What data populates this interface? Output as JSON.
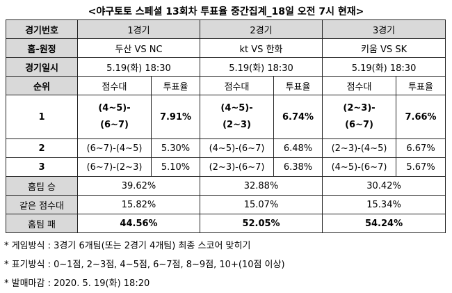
{
  "title": "<야구토토 스페셜 13회차 투표율 중간집계_18일 오전 7시 현재>",
  "header": {
    "game_no_label": "경기번호",
    "games": [
      "1경기",
      "2경기",
      "3경기"
    ]
  },
  "matchup": {
    "label": "홈-원정",
    "values": [
      "두산 VS NC",
      "kt VS 한화",
      "키움 VS SK"
    ]
  },
  "schedule": {
    "label": "경기일시",
    "values": [
      "5.19(화) 18:30",
      "5.19(화) 18:30",
      "5.19(화) 18:30"
    ]
  },
  "rank_header": {
    "label": "순위",
    "score_label": "점수대",
    "rate_label": "투표율"
  },
  "ranks": [
    {
      "rank": "1",
      "cells": [
        {
          "score_line1": "(4~5)-",
          "score_line2": "(6~7)",
          "rate": "7.91%"
        },
        {
          "score_line1": "(4~5)-",
          "score_line2": "(2~3)",
          "rate": "6.74%"
        },
        {
          "score_line1": "(2~3)-",
          "score_line2": "(6~7)",
          "rate": "7.66%"
        }
      ]
    },
    {
      "rank": "2",
      "cells": [
        {
          "score": "(6~7)-(4~5)",
          "rate": "5.30%"
        },
        {
          "score": "(4~5)-(6~7)",
          "rate": "6.48%"
        },
        {
          "score": "(2~3)-(4~5)",
          "rate": "6.67%"
        }
      ]
    },
    {
      "rank": "3",
      "cells": [
        {
          "score": "(6~7)-(2~3)",
          "rate": "5.10%"
        },
        {
          "score": "(2~3)-(6~7)",
          "rate": "6.38%"
        },
        {
          "score": "(4~5)-(6~7)",
          "rate": "5.67%"
        }
      ]
    }
  ],
  "outcomes": [
    {
      "label": "홈팀 승",
      "values": [
        "39.62%",
        "32.88%",
        "30.42%"
      ]
    },
    {
      "label": "같은 점수대",
      "values": [
        "15.82%",
        "15.07%",
        "15.34%"
      ]
    },
    {
      "label": "홈팀 패",
      "values": [
        "44.56%",
        "52.05%",
        "54.24%"
      ]
    }
  ],
  "notes": [
    "* 게임방식 : 3경기 6개팀(또는 2경기 4개팀) 최종 스코어 맞히기",
    "* 표기방식 : 0~1점, 2~3점, 4~5점, 6~7점, 8~9점, 10+(10점 이상)",
    "* 발매마감 : 2020. 5. 19(화) 18:20"
  ]
}
